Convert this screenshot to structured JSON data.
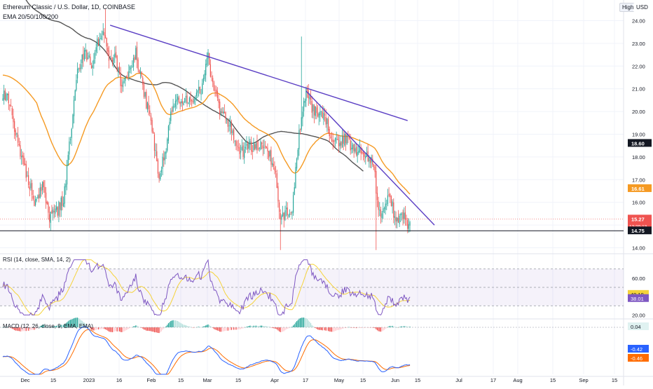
{
  "header": {
    "symbol_title": "Ethereum Classic / U.S. Dollar, 1D, COINBASE",
    "indicator_label": "EMA 20/50/100/200",
    "scale_mode": "High",
    "currency": "USD"
  },
  "colors": {
    "up": "#26a69a",
    "down": "#ef5350",
    "ema_orange": "#f59a23",
    "ema_gray": "#555555",
    "trendline": "#5b3fc4",
    "rsi_line": "#7e57c2",
    "rsi_ma": "#f5d33a",
    "macd_line": "#2962ff",
    "signal_line": "#ff6d00"
  },
  "chart_data": [
    {
      "type": "candlestick",
      "name": "price",
      "title": "Ethereum Classic / U.S. Dollar, 1D, COINBASE",
      "ylim": [
        13.8,
        24.6
      ],
      "y_ticks": [
        "24.00",
        "23.00",
        "22.00",
        "21.00",
        "20.00",
        "19.00",
        "18.00",
        "17.00",
        "16.00",
        "15.00",
        "14.00"
      ],
      "x_ticks": [
        "Dec",
        "15",
        "2023",
        "16",
        "Feb",
        "15",
        "Mar",
        "15",
        "Apr",
        "17",
        "May",
        "15",
        "Jun",
        "15",
        "Jul",
        "17",
        "Aug",
        "15",
        "Sep",
        "15"
      ],
      "anchors": [
        [
          0,
          20.6
        ],
        [
          4,
          20.8
        ],
        [
          10,
          19.2
        ],
        [
          18,
          17.6
        ],
        [
          28,
          15.9
        ],
        [
          34,
          16.7
        ],
        [
          40,
          15.3
        ],
        [
          46,
          15.6
        ],
        [
          52,
          16.1
        ],
        [
          58,
          19.0
        ],
        [
          64,
          21.8
        ],
        [
          70,
          22.6
        ],
        [
          76,
          22.1
        ],
        [
          82,
          23.1
        ],
        [
          88,
          23.4
        ],
        [
          92,
          22.2
        ],
        [
          96,
          22.6
        ],
        [
          102,
          21.0
        ],
        [
          108,
          21.6
        ],
        [
          114,
          22.6
        ],
        [
          122,
          20.6
        ],
        [
          128,
          19.2
        ],
        [
          134,
          17.1
        ],
        [
          140,
          18.4
        ],
        [
          146,
          20.5
        ],
        [
          152,
          20.4
        ],
        [
          158,
          20.6
        ],
        [
          164,
          20.6
        ],
        [
          170,
          21.0
        ],
        [
          176,
          22.4
        ],
        [
          180,
          21.2
        ],
        [
          186,
          20.1
        ],
        [
          192,
          19.7
        ],
        [
          198,
          18.9
        ],
        [
          204,
          18.1
        ],
        [
          210,
          18.6
        ],
        [
          216,
          18.3
        ],
        [
          222,
          18.6
        ],
        [
          228,
          18.2
        ],
        [
          234,
          17.1
        ],
        [
          238,
          15.0
        ],
        [
          242,
          15.6
        ],
        [
          248,
          15.8
        ],
        [
          254,
          19.1
        ],
        [
          260,
          20.8
        ],
        [
          264,
          20.3
        ],
        [
          270,
          19.8
        ],
        [
          276,
          19.7
        ],
        [
          282,
          18.9
        ],
        [
          288,
          18.6
        ],
        [
          294,
          18.8
        ],
        [
          298,
          18.5
        ],
        [
          304,
          18.3
        ],
        [
          308,
          18.2
        ],
        [
          312,
          18.1
        ],
        [
          318,
          17.8
        ],
        [
          322,
          15.4
        ],
        [
          326,
          15.6
        ],
        [
          330,
          16.3
        ],
        [
          334,
          15.9
        ],
        [
          337,
          15.0
        ],
        [
          340,
          15.3
        ],
        [
          344,
          15.3
        ],
        [
          347,
          15.1
        ]
      ],
      "horizontal_line": 14.75,
      "trendlines": [
        {
          "from": [
            92,
            23.8
          ],
          "to": [
            347,
            19.6
          ]
        },
        {
          "from": [
            260,
            20.9
          ],
          "to": [
            370,
            15.0
          ]
        }
      ],
      "price_labels": [
        {
          "value": 18.6,
          "text": "18.60",
          "style": "ema200"
        },
        {
          "value": 16.61,
          "text": "16.61",
          "style": "ema50"
        },
        {
          "value": 15.27,
          "text": "15.27",
          "style": "last"
        },
        {
          "value": 14.75,
          "text": "14.75",
          "style": "line"
        }
      ],
      "countdown": "13:39:13"
    },
    {
      "type": "line",
      "name": "rsi",
      "title": "RSI (14, close, SMA, 14, 2)",
      "ylim": [
        18,
        82
      ],
      "bands": [
        30,
        50,
        70
      ],
      "y_ticks": [
        "60.00",
        "40.00",
        "20.00"
      ],
      "y_tick_values": [
        60,
        40,
        20
      ],
      "last_values": [
        {
          "text": "40.19",
          "series": "rsi_ma"
        },
        {
          "text": "38.01",
          "series": "rsi"
        }
      ]
    },
    {
      "type": "bar",
      "name": "macd",
      "title": "MACD (12, 26, close, 9, EMA, EMA)",
      "last_values": [
        {
          "text": "0.04",
          "series": "histogram"
        },
        {
          "text": "-0.42",
          "series": "macd"
        },
        {
          "text": "-0.46",
          "series": "signal"
        }
      ]
    }
  ]
}
